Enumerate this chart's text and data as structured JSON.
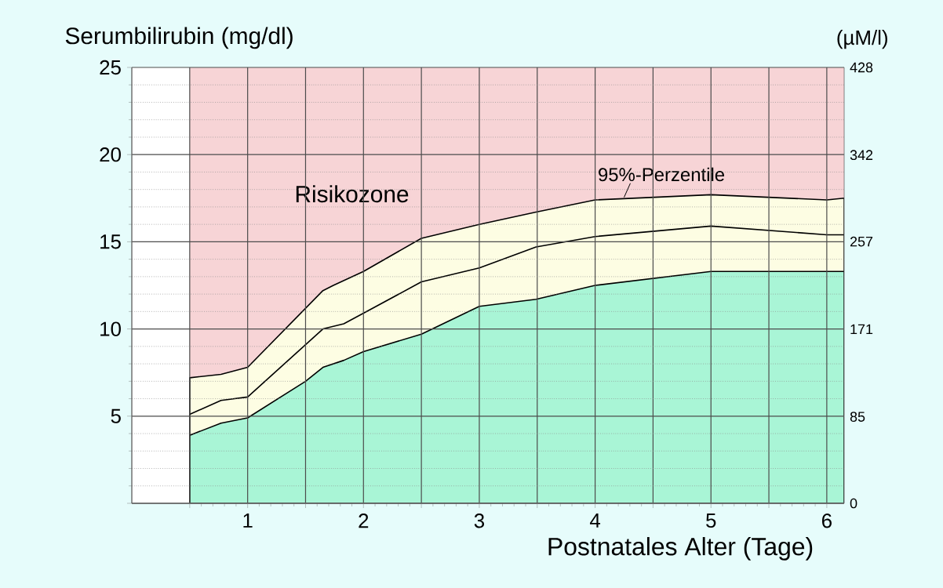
{
  "chart_data": {
    "type": "area",
    "ylabel": "Serumbilirubin (mg/dl)",
    "y2label": "(µM/l)",
    "xlabel": "Postnatales Alter (Tage)",
    "xlim": [
      0,
      6.15
    ],
    "ylim": [
      0,
      25
    ],
    "y2lim": [
      0,
      428
    ],
    "xticks": [
      {
        "value": 0.5,
        "label": null
      },
      1,
      {
        "value": 1.5,
        "label": null
      },
      2,
      {
        "value": 2.5,
        "label": null
      },
      3,
      {
        "value": 3.5,
        "label": null
      },
      4,
      {
        "value": 4.5,
        "label": null
      },
      5,
      {
        "value": 5.5,
        "label": null
      },
      6
    ],
    "yticks": [
      {
        "value": 0,
        "label": null
      },
      5,
      10,
      15,
      20,
      25
    ],
    "y2ticks": [
      0,
      85,
      171,
      257,
      342,
      428
    ],
    "grid": true,
    "bands": [
      {
        "axis": "x",
        "from": 0.5,
        "to": 6.15,
        "label": "Risikozone",
        "color": "#f7d4d6"
      }
    ],
    "series": [
      {
        "color": "#fdfde3",
        "x": [
          0.5,
          0.77,
          1.0,
          1.65,
          1.74,
          2.0,
          2.5,
          3.0,
          3.49,
          4.0,
          5.0,
          6.0,
          6.15
        ],
        "values": [
          7.2,
          7.4,
          7.8,
          12.2,
          12.5,
          13.3,
          15.2,
          16.0,
          16.7,
          17.4,
          17.7,
          17.4,
          17.5
        ]
      },
      {
        "type": "line",
        "color": "#000000",
        "x": [
          0.5,
          0.77,
          1.0,
          1.65,
          1.83,
          2.0,
          2.5,
          3.0,
          3.49,
          4.0,
          5.0,
          6.0,
          6.15
        ],
        "values": [
          5.1,
          5.9,
          6.1,
          10.0,
          10.3,
          10.9,
          12.7,
          13.5,
          14.7,
          15.3,
          15.9,
          15.4,
          15.4
        ]
      },
      {
        "color": "#a9f5d6",
        "x": [
          0.5,
          0.77,
          1.0,
          1.5,
          1.65,
          1.83,
          2.0,
          2.5,
          3.0,
          3.49,
          4.0,
          5.0,
          6.0,
          6.15
        ],
        "values": [
          3.9,
          4.6,
          4.9,
          7.0,
          7.8,
          8.2,
          8.7,
          9.7,
          11.3,
          11.7,
          12.5,
          13.3,
          13.3,
          13.3
        ]
      }
    ],
    "annotations": [
      {
        "text": "95%-Perzentile",
        "x": 4.25,
        "y": 17.55
      }
    ]
  }
}
